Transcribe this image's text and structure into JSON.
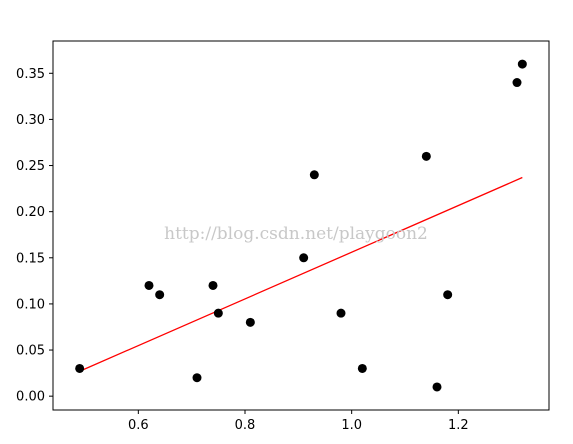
{
  "chart_data": {
    "type": "scatter",
    "title": "",
    "xlabel": "",
    "ylabel": "",
    "xlim": [
      0.44,
      1.37
    ],
    "ylim": [
      -0.015,
      0.385
    ],
    "x_ticks": [
      0.6,
      0.8,
      1.0,
      1.2
    ],
    "x_tick_labels": [
      "0.6",
      "0.8",
      "1.0",
      "1.2"
    ],
    "y_ticks": [
      0.0,
      0.05,
      0.1,
      0.15,
      0.2,
      0.25,
      0.3,
      0.35
    ],
    "y_tick_labels": [
      "0.00",
      "0.05",
      "0.10",
      "0.15",
      "0.20",
      "0.25",
      "0.30",
      "0.35"
    ],
    "grid": false,
    "series": [
      {
        "kind": "scatter",
        "color": "#000000",
        "x": [
          0.49,
          0.62,
          0.64,
          0.71,
          0.74,
          0.75,
          0.81,
          0.91,
          0.93,
          0.98,
          1.02,
          1.14,
          1.16,
          1.18,
          1.31,
          1.32
        ],
        "y": [
          0.03,
          0.12,
          0.11,
          0.02,
          0.12,
          0.09,
          0.08,
          0.15,
          0.24,
          0.09,
          0.03,
          0.26,
          0.01,
          0.11,
          0.34,
          0.36
        ]
      },
      {
        "kind": "line",
        "color": "#ff0000",
        "x": [
          0.49,
          1.32
        ],
        "y": [
          0.027,
          0.237
        ]
      }
    ],
    "watermark": "http://blog.csdn.net/playgoon2"
  }
}
